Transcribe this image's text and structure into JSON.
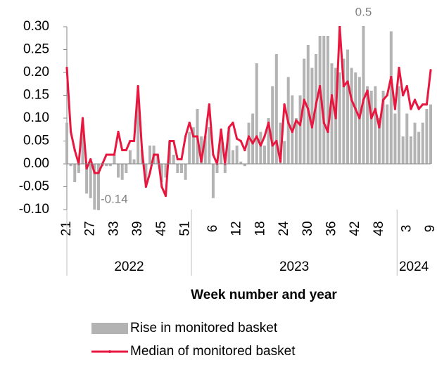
{
  "chart_data": {
    "type": "bar-line",
    "x_label": "Week number and year",
    "categories": [
      "21",
      null,
      null,
      null,
      null,
      null,
      "27",
      null,
      null,
      null,
      null,
      null,
      "33",
      null,
      null,
      null,
      null,
      null,
      "39",
      null,
      null,
      null,
      null,
      null,
      "45",
      null,
      null,
      null,
      null,
      null,
      "51",
      null,
      null,
      null,
      null,
      null,
      null,
      "6",
      null,
      null,
      null,
      null,
      null,
      "12",
      null,
      null,
      null,
      null,
      null,
      "18",
      null,
      null,
      null,
      null,
      null,
      "24",
      null,
      null,
      null,
      null,
      null,
      "30",
      null,
      null,
      null,
      null,
      null,
      "36",
      null,
      null,
      null,
      null,
      null,
      "42",
      null,
      null,
      null,
      null,
      null,
      "48",
      null,
      null,
      null,
      null,
      null,
      null,
      "3",
      null,
      null,
      null,
      null,
      null,
      "9"
    ],
    "groups": [
      {
        "label": "2022",
        "size": 32
      },
      {
        "label": "2023",
        "size": 52
      },
      {
        "label": "2024",
        "size": 9
      }
    ],
    "series": [
      {
        "name": "Rise in monitored basket",
        "kind": "bar",
        "color": "#b3b3b3",
        "values": [
          0.09,
          -0.005,
          -0.04,
          -0.02,
          0.09,
          -0.065,
          -0.075,
          -0.1,
          -0.14,
          -0.005,
          -0.005,
          -0.005,
          0.02,
          -0.03,
          -0.035,
          -0.02,
          0.03,
          0.01,
          0.16,
          0.03,
          -0.04,
          0.04,
          0.04,
          0.02,
          -0.04,
          -0.03,
          0.05,
          0.02,
          -0.02,
          -0.02,
          -0.035,
          0.07,
          0.08,
          0.12,
          0.06,
          0.06,
          0.08,
          -0.075,
          -0.02,
          0.06,
          -0.02,
          0.08,
          0.03,
          0.04,
          0.005,
          -0.005,
          0.09,
          0.11,
          0.22,
          0.07,
          0.04,
          0.1,
          0.17,
          0.24,
          0.09,
          0.05,
          0.19,
          0.15,
          0.1,
          0.15,
          0.23,
          0.26,
          0.21,
          0.24,
          0.28,
          0.28,
          0.28,
          0.22,
          0.21,
          0.2,
          0.23,
          0.25,
          0.21,
          0.2,
          0.19,
          0.5,
          0.17,
          0.16,
          0.17,
          0.1,
          0.16,
          0.13,
          0.29,
          0.11,
          0.17,
          0.06,
          0.11,
          0.06,
          0.09,
          0.07,
          0.09,
          0.12,
          0.13
        ],
        "value_labels": [
          null,
          null,
          null,
          null,
          null,
          null,
          null,
          null,
          "-0.14",
          null,
          null,
          null,
          null,
          null,
          null,
          null,
          null,
          null,
          null,
          null,
          null,
          null,
          null,
          null,
          null,
          null,
          null,
          null,
          null,
          null,
          null,
          null,
          null,
          null,
          null,
          null,
          null,
          null,
          null,
          null,
          null,
          null,
          null,
          null,
          null,
          null,
          null,
          null,
          null,
          null,
          null,
          null,
          null,
          null,
          null,
          null,
          null,
          null,
          null,
          null,
          null,
          null,
          null,
          null,
          null,
          null,
          null,
          null,
          null,
          null,
          null,
          null,
          null,
          null,
          null,
          "0.5",
          null,
          null,
          null,
          null,
          null,
          null,
          null,
          null,
          null,
          null,
          null,
          null,
          null,
          null,
          null,
          null,
          null
        ]
      },
      {
        "name": "Median of monitored basket",
        "kind": "line",
        "color": "#e8173f",
        "values": [
          0.21,
          0.07,
          0.03,
          0.0,
          0.1,
          -0.01,
          0.01,
          -0.02,
          -0.02,
          0.0,
          0.02,
          0.02,
          0.02,
          0.07,
          0.03,
          0.03,
          0.05,
          0.05,
          0.17,
          0.03,
          -0.05,
          -0.02,
          0.02,
          0.02,
          -0.05,
          -0.07,
          0.05,
          0.05,
          0.01,
          0.01,
          0.06,
          0.09,
          0.06,
          0.06,
          0.005,
          0.06,
          0.13,
          0.02,
          0.0,
          0.075,
          0.0,
          0.08,
          0.09,
          0.055,
          0.05,
          0.03,
          0.06,
          0.045,
          0.06,
          0.04,
          0.06,
          0.09,
          0.04,
          0.05,
          0.005,
          0.13,
          0.09,
          0.07,
          0.095,
          0.085,
          0.14,
          0.12,
          0.08,
          0.13,
          0.17,
          0.09,
          0.07,
          0.15,
          0.1,
          0.3,
          0.17,
          0.18,
          0.14,
          0.12,
          0.1,
          0.14,
          0.16,
          0.1,
          0.12,
          0.08,
          0.14,
          0.15,
          0.19,
          0.12,
          0.21,
          0.15,
          0.17,
          0.12,
          0.14,
          0.12,
          0.13,
          0.13,
          0.205
        ]
      }
    ],
    "ylim": [
      -0.1,
      0.3
    ],
    "yticks": [
      {
        "value": -0.1,
        "label": "-0.10"
      },
      {
        "value": -0.05,
        "label": "-0.05"
      },
      {
        "value": 0,
        "label": "0.00"
      },
      {
        "value": 0.05,
        "label": "0.05"
      },
      {
        "value": 0.1,
        "label": "0.10"
      },
      {
        "value": 0.15,
        "label": "0.15"
      },
      {
        "value": 0.2,
        "label": "0.20"
      },
      {
        "value": 0.25,
        "label": "0.25"
      },
      {
        "value": 0.3,
        "label": "0.30"
      }
    ]
  }
}
